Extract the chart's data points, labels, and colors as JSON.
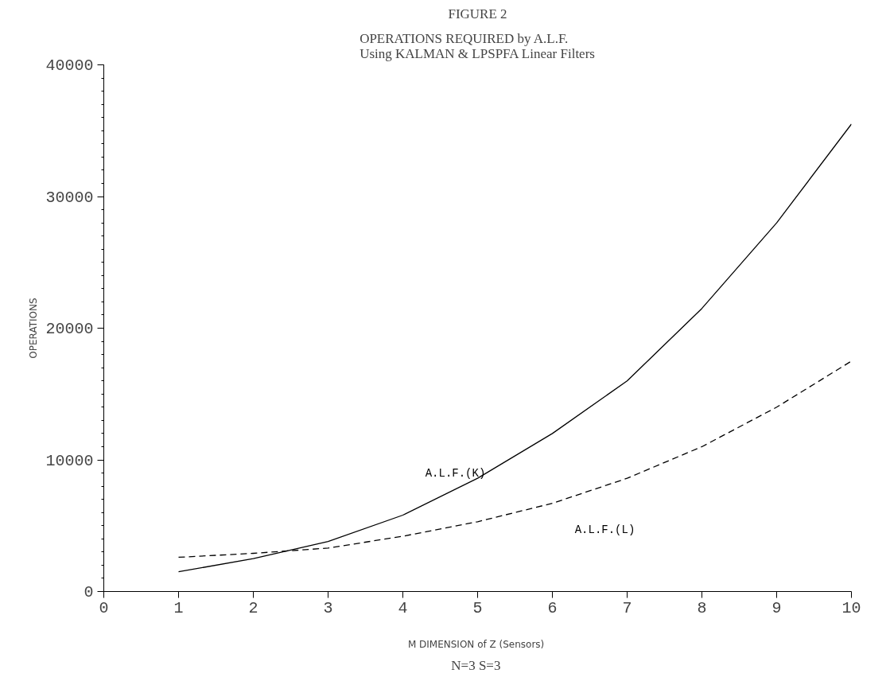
{
  "chart_data": {
    "type": "line",
    "title": "FIGURE 2",
    "subtitle": "OPERATIONS REQUIRED by A.L.F.\nUsing KALMAN & LPSPFA Linear Filters",
    "xlabel": "M  DIMENSION of Z (Sensors)",
    "ylabel": "OPERATIONS",
    "x": [
      1,
      2,
      3,
      4,
      5,
      6,
      7,
      8,
      9,
      10
    ],
    "series": [
      {
        "name": "A.L.F.(K)",
        "color": "#000000",
        "line_style": "solid",
        "values": [
          1500,
          2500,
          3800,
          5800,
          8600,
          12000,
          16000,
          21500,
          28000,
          35500
        ]
      },
      {
        "name": "A.L.F.(L)",
        "color": "#000000",
        "line_style": "dashed",
        "values": [
          2600,
          2900,
          3300,
          4200,
          5300,
          6700,
          8600,
          11000,
          14000,
          17500
        ]
      }
    ],
    "xlim": [
      0,
      10
    ],
    "ylim": [
      0,
      40000
    ],
    "xticks": [
      0,
      1,
      2,
      3,
      4,
      5,
      6,
      7,
      8,
      9,
      10
    ],
    "yticks": [
      0,
      10000,
      20000,
      30000,
      40000
    ],
    "grid": false,
    "marker": "none",
    "annotations": [
      "N=3  S=3"
    ]
  }
}
